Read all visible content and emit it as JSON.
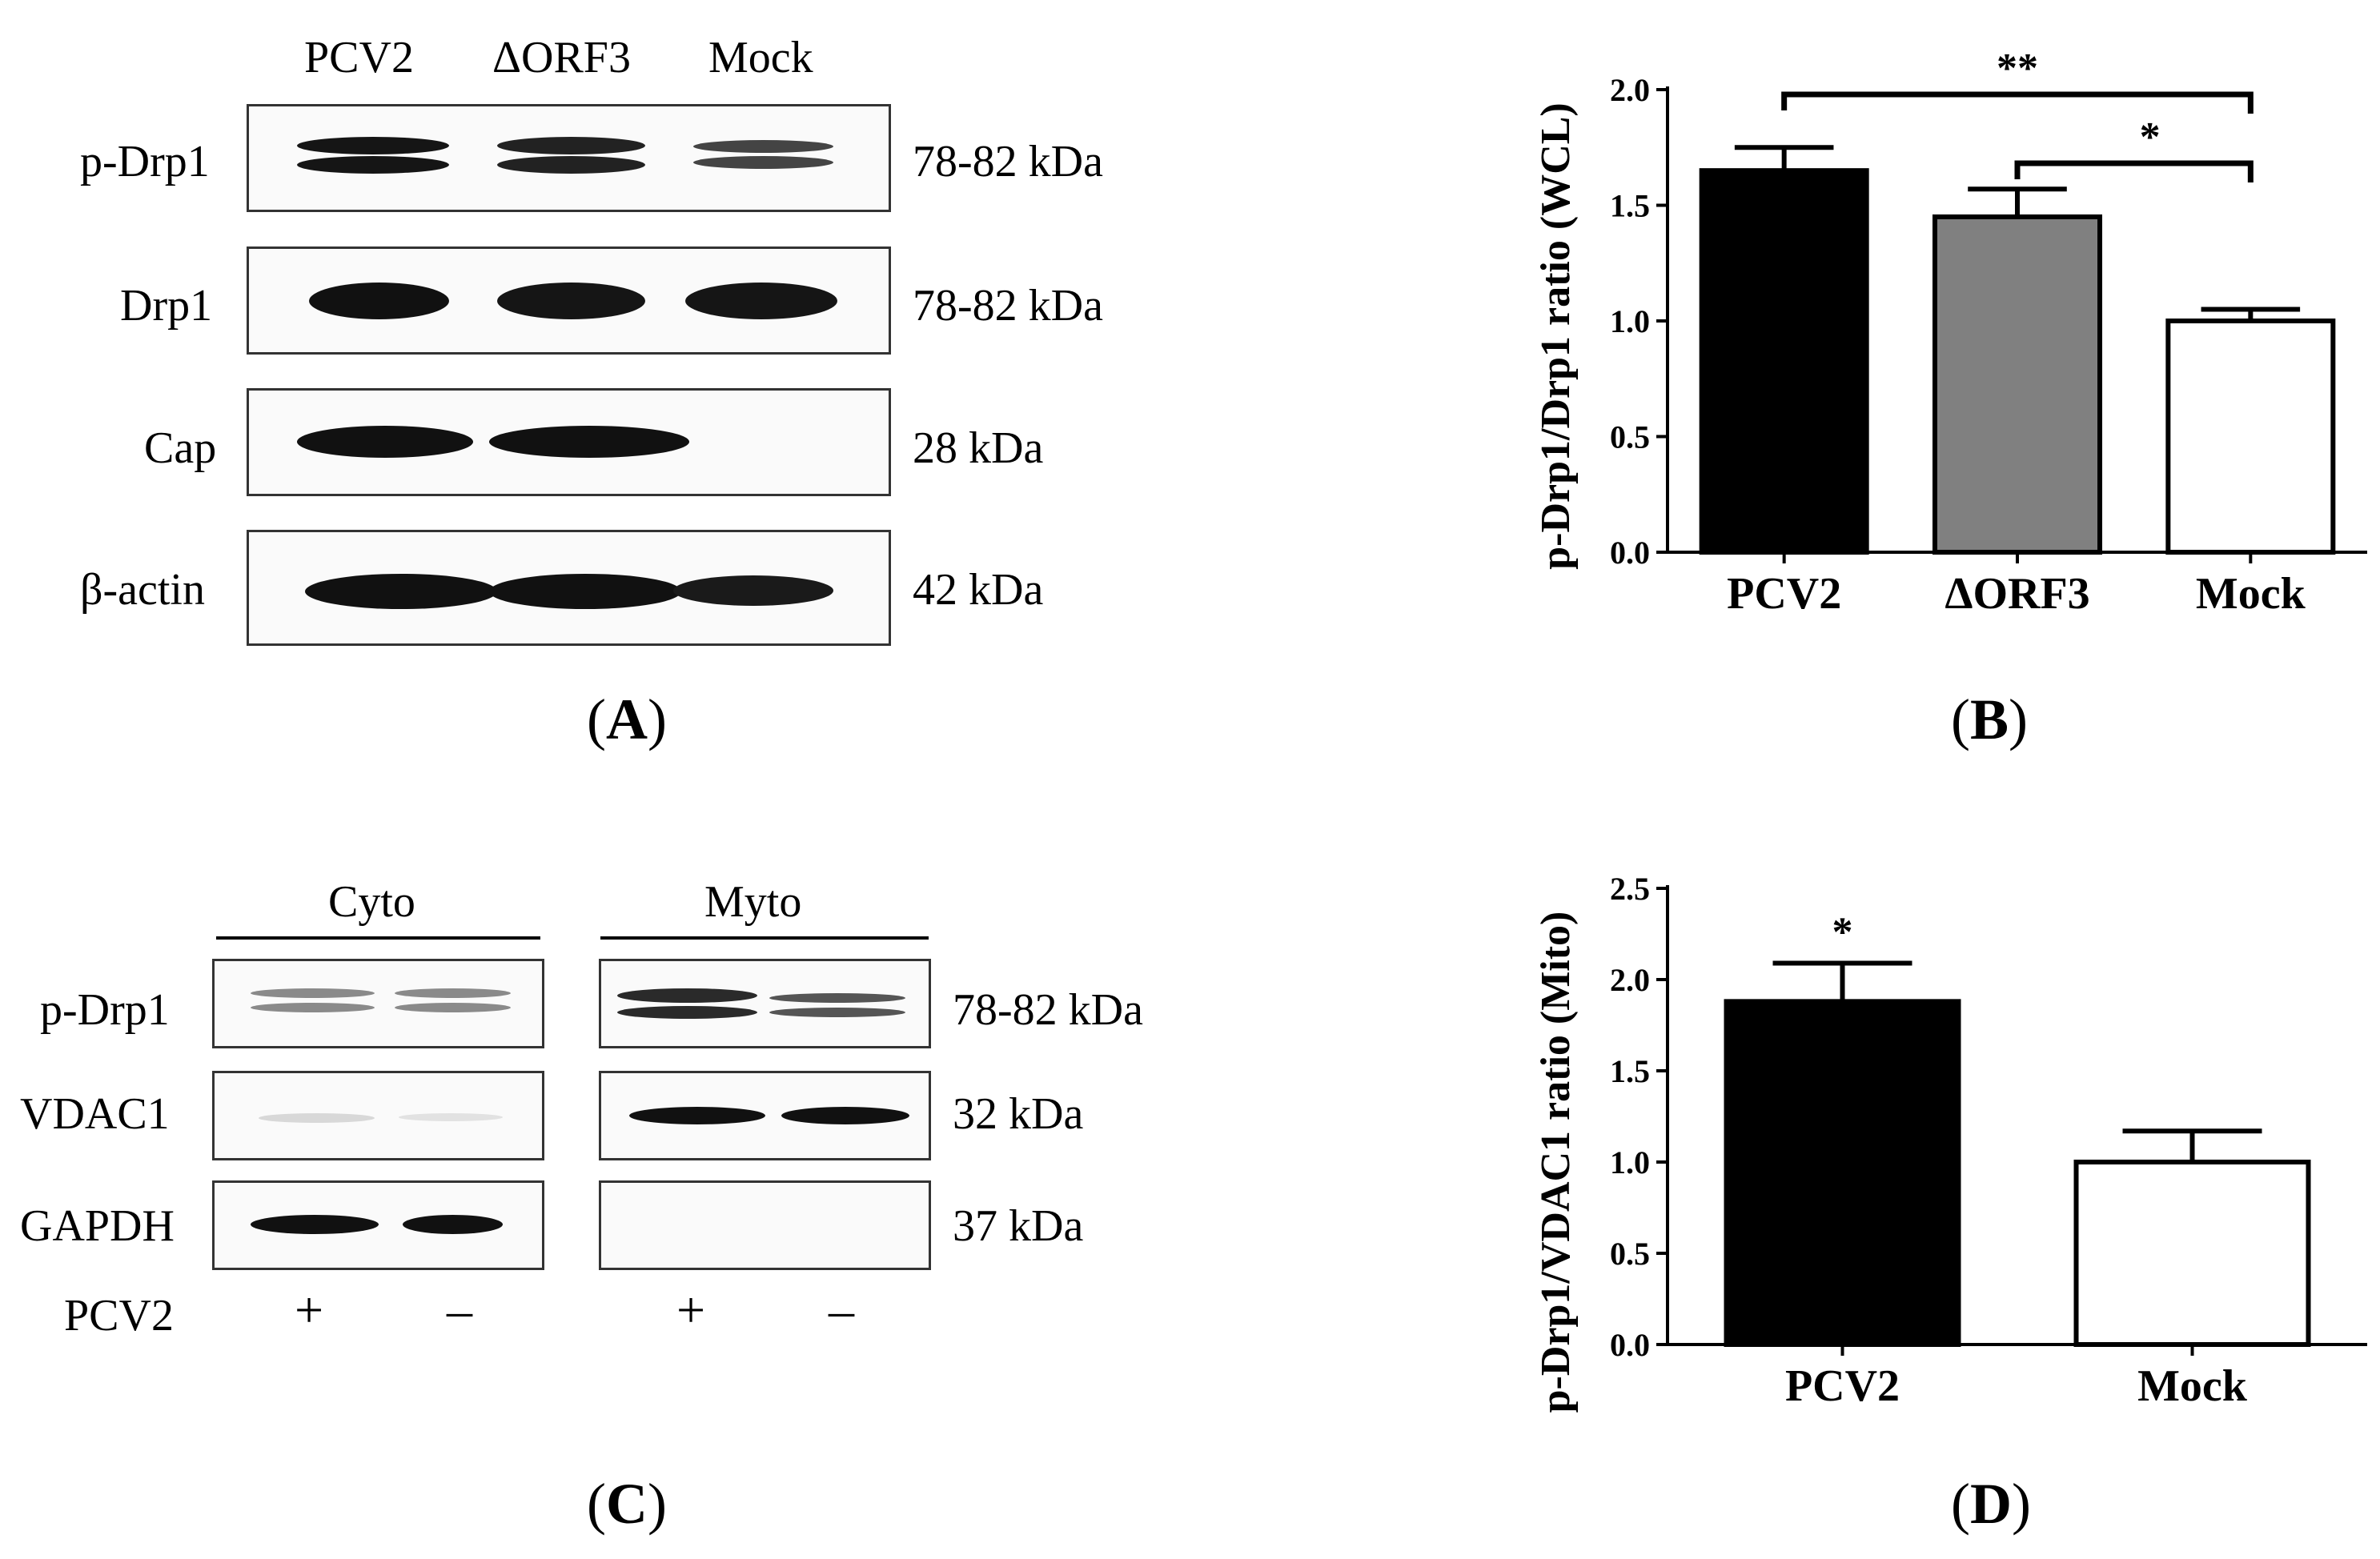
{
  "panel_labels": {
    "a": "A",
    "b": "B",
    "c": "C",
    "d": "D"
  },
  "panel_a": {
    "lanes": [
      "PCV2",
      "ΔORF3",
      "Mock"
    ],
    "rows": [
      {
        "label": "p-Drp1",
        "size": "78-82 kDa",
        "intensity": [
          1.0,
          0.9,
          0.6
        ]
      },
      {
        "label": "Drp1",
        "size": "78-82 kDa",
        "intensity": [
          1.0,
          1.0,
          1.0
        ]
      },
      {
        "label": "Cap",
        "size": "28 kDa",
        "intensity": [
          1.0,
          1.0,
          0.0
        ]
      },
      {
        "label": "β-actin",
        "size": "42 kDa",
        "intensity": [
          1.0,
          1.0,
          1.0
        ]
      }
    ]
  },
  "panel_c": {
    "group_left": "Cyto",
    "group_right": "Myto",
    "rows": [
      {
        "label": "p-Drp1",
        "size": "78-82 kDa"
      },
      {
        "label": "VDAC1",
        "size": "32 kDa"
      },
      {
        "label": "GAPDH",
        "size": "37 kDa"
      }
    ],
    "treatment_label": "PCV2",
    "treatment_signs": [
      "+",
      "–",
      "+",
      "–"
    ]
  },
  "chart_data": [
    {
      "panel": "B",
      "type": "bar",
      "categories": [
        "PCV2",
        "ΔORF3",
        "Mock"
      ],
      "values": [
        1.65,
        1.45,
        1.0
      ],
      "errors": [
        0.1,
        0.12,
        0.05
      ],
      "colors": [
        "#000000",
        "#808080",
        "#ffffff"
      ],
      "title": "",
      "xlabel": "",
      "ylabel": "p-Drp1/Drp1 ratio (WCL)",
      "ylim": [
        0,
        2.0
      ],
      "yticks": [
        "0.0",
        "0.5",
        "1.0",
        "1.5",
        "2.0"
      ],
      "significance": [
        {
          "from": "PCV2",
          "to": "Mock",
          "label": "**"
        },
        {
          "from": "ΔORF3",
          "to": "Mock",
          "label": "*"
        }
      ]
    },
    {
      "panel": "D",
      "type": "bar",
      "categories": [
        "PCV2",
        "Mock"
      ],
      "values": [
        1.88,
        1.0
      ],
      "errors": [
        0.21,
        0.17
      ],
      "colors": [
        "#000000",
        "#ffffff"
      ],
      "title": "",
      "xlabel": "",
      "ylabel": "p-Drp1/VDAC1 ratio (Mito)",
      "ylim": [
        0,
        2.5
      ],
      "yticks": [
        "0.0",
        "0.5",
        "1.0",
        "1.5",
        "2.0",
        "2.5"
      ],
      "significance": [
        {
          "on": "PCV2",
          "label": "*"
        }
      ]
    }
  ]
}
